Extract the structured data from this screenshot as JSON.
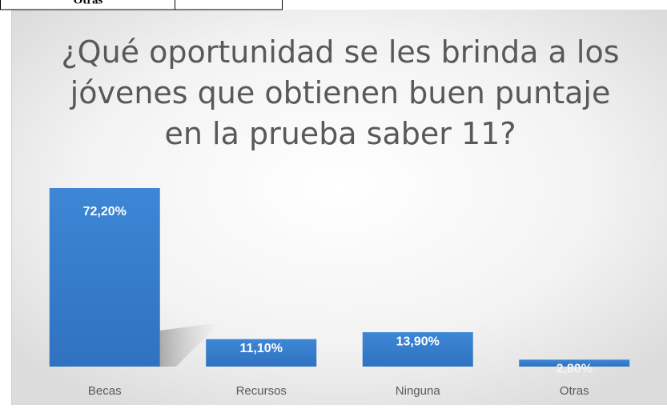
{
  "table": {
    "rows": [
      [
        "Otras"
      ]
    ]
  },
  "chart_data": {
    "type": "bar",
    "title": "¿Qué oportunidad se les brinda a los jóvenes que obtienen buen puntaje en la prueba saber 11?",
    "categories": [
      "Becas",
      "Recursos",
      "Ninguna",
      "Otras"
    ],
    "values": [
      72.2,
      11.1,
      13.9,
      2.8
    ],
    "value_labels": [
      "72,20%",
      "11,10%",
      "13,90%",
      "2,80%"
    ],
    "color": "#3c82cf"
  }
}
